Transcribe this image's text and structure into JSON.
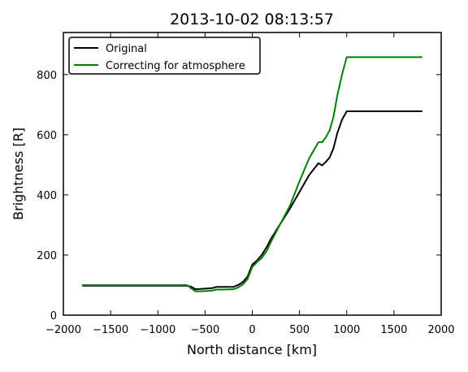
{
  "chart_data": {
    "type": "line",
    "title": "2013-10-02 08:13:57",
    "xlabel": "North distance [km]",
    "ylabel": "Brightness [R]",
    "xlim": [
      -2000,
      2000
    ],
    "ylim": [
      0,
      940
    ],
    "xticks": [
      -2000,
      -1500,
      -1000,
      -500,
      0,
      500,
      1000,
      1500,
      2000
    ],
    "xtick_labels": [
      "−2000",
      "−1500",
      "−1000",
      "−500",
      "0",
      "500",
      "1000",
      "1500",
      "2000"
    ],
    "yticks": [
      0,
      200,
      400,
      600,
      800
    ],
    "ytick_labels": [
      "0",
      "200",
      "400",
      "600",
      "800"
    ],
    "grid": false,
    "legend_position": "top-left",
    "series": [
      {
        "name": "Original",
        "color": "#000000",
        "x": [
          -1800,
          -700,
          -650,
          -600,
          -500,
          -420,
          -380,
          -300,
          -200,
          -150,
          -100,
          -50,
          0,
          50,
          100,
          150,
          200,
          300,
          400,
          500,
          600,
          700,
          740,
          780,
          820,
          860,
          900,
          950,
          1000,
          1800
        ],
        "y": [
          98,
          98,
          95,
          86,
          88,
          90,
          94,
          94,
          94,
          100,
          110,
          128,
          168,
          182,
          200,
          225,
          255,
          305,
          355,
          410,
          465,
          505,
          498,
          510,
          525,
          555,
          605,
          650,
          678,
          678
        ]
      },
      {
        "name": "Correcting for atmosphere",
        "color": "#008000",
        "x": [
          -1800,
          -700,
          -680,
          -650,
          -600,
          -500,
          -420,
          -380,
          -300,
          -200,
          -150,
          -100,
          -50,
          0,
          50,
          100,
          150,
          200,
          300,
          400,
          500,
          600,
          700,
          740,
          780,
          820,
          860,
          900,
          950,
          1000,
          1800
        ],
        "y": [
          100,
          100,
          98,
          90,
          79,
          80,
          82,
          85,
          85,
          86,
          92,
          102,
          120,
          160,
          177,
          190,
          212,
          245,
          305,
          365,
          445,
          520,
          575,
          575,
          592,
          615,
          660,
          730,
          800,
          858,
          858
        ]
      }
    ]
  }
}
